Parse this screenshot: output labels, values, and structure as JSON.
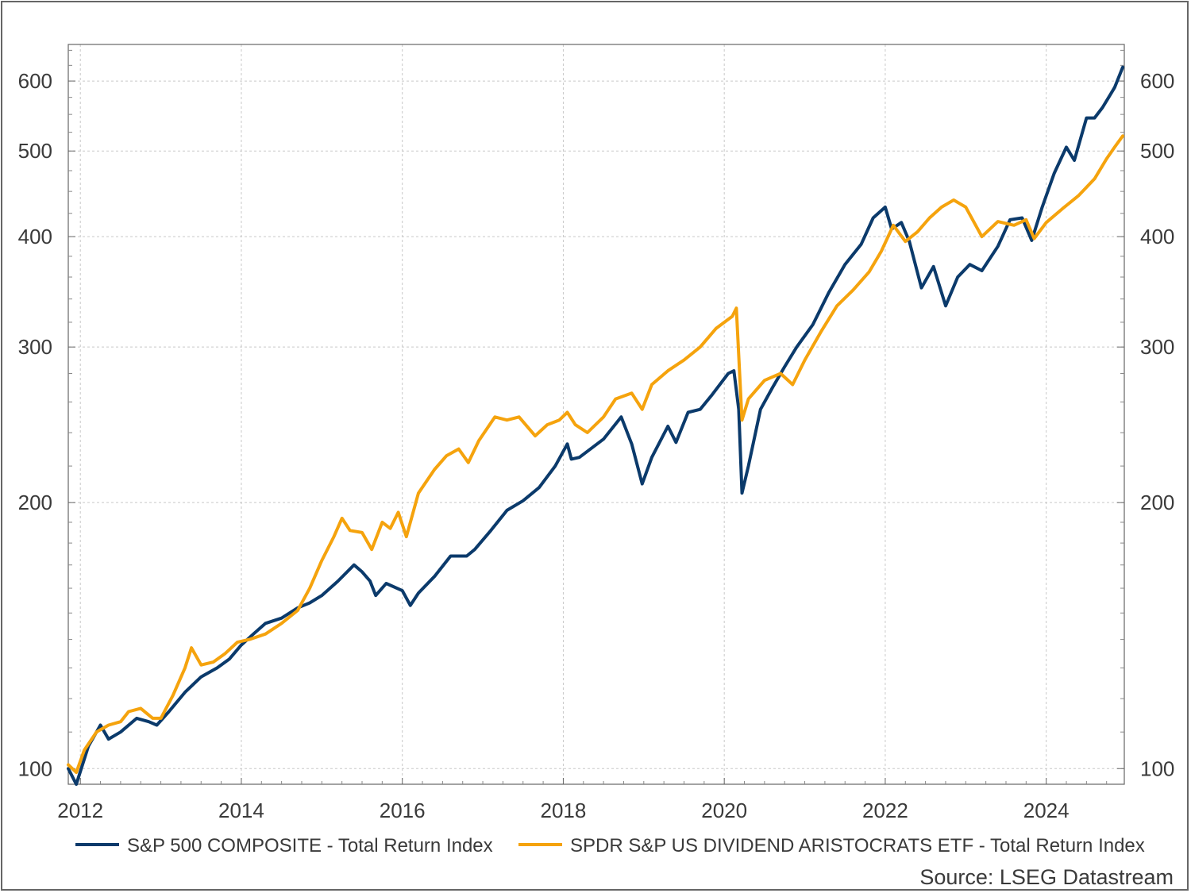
{
  "chart_data": {
    "type": "line",
    "title": "",
    "xlabel": "",
    "ylabel": "",
    "y_scale": "log",
    "ylim": [
      96,
      660
    ],
    "xlim": [
      2011.85,
      2024.97
    ],
    "x_ticks": [
      2012,
      2014,
      2016,
      2018,
      2020,
      2022,
      2024
    ],
    "x_tick_labels": [
      "2012",
      "2014",
      "2016",
      "2018",
      "2020",
      "2022",
      "2024"
    ],
    "y_ticks": [
      100,
      200,
      300,
      400,
      500,
      600
    ],
    "y_tick_labels": [
      "100",
      "200",
      "300",
      "400",
      "500",
      "600"
    ],
    "y_axis_both_sides": true,
    "grid": true,
    "legend_position": "bottom",
    "series": [
      {
        "name": "S&P 500 COMPOSITE - Total Return Index",
        "color": "#0b3a6b",
        "points": [
          [
            2011.85,
            100
          ],
          [
            2011.95,
            96
          ],
          [
            2012.1,
            106
          ],
          [
            2012.25,
            112
          ],
          [
            2012.35,
            108
          ],
          [
            2012.5,
            110
          ],
          [
            2012.7,
            114
          ],
          [
            2012.85,
            113
          ],
          [
            2012.95,
            112
          ],
          [
            2013.1,
            116
          ],
          [
            2013.3,
            122
          ],
          [
            2013.5,
            127
          ],
          [
            2013.7,
            130
          ],
          [
            2013.85,
            133
          ],
          [
            2014.0,
            138
          ],
          [
            2014.15,
            142
          ],
          [
            2014.3,
            146
          ],
          [
            2014.5,
            148
          ],
          [
            2014.7,
            152
          ],
          [
            2014.85,
            154
          ],
          [
            2015.0,
            157
          ],
          [
            2015.2,
            163
          ],
          [
            2015.4,
            170
          ],
          [
            2015.5,
            167
          ],
          [
            2015.6,
            163
          ],
          [
            2015.67,
            157
          ],
          [
            2015.8,
            162
          ],
          [
            2016.0,
            159
          ],
          [
            2016.1,
            153
          ],
          [
            2016.2,
            158
          ],
          [
            2016.4,
            165
          ],
          [
            2016.6,
            174
          ],
          [
            2016.8,
            174
          ],
          [
            2016.9,
            177
          ],
          [
            2017.1,
            186
          ],
          [
            2017.3,
            196
          ],
          [
            2017.5,
            201
          ],
          [
            2017.7,
            208
          ],
          [
            2017.9,
            220
          ],
          [
            2018.05,
            233
          ],
          [
            2018.1,
            224
          ],
          [
            2018.2,
            225
          ],
          [
            2018.5,
            236
          ],
          [
            2018.72,
            250
          ],
          [
            2018.85,
            233
          ],
          [
            2018.98,
            210
          ],
          [
            2019.1,
            225
          ],
          [
            2019.3,
            244
          ],
          [
            2019.4,
            234
          ],
          [
            2019.55,
            253
          ],
          [
            2019.7,
            255
          ],
          [
            2019.85,
            265
          ],
          [
            2020.05,
            280
          ],
          [
            2020.12,
            282
          ],
          [
            2020.18,
            255
          ],
          [
            2020.22,
            205
          ],
          [
            2020.3,
            220
          ],
          [
            2020.45,
            255
          ],
          [
            2020.6,
            270
          ],
          [
            2020.75,
            285
          ],
          [
            2020.9,
            300
          ],
          [
            2021.1,
            318
          ],
          [
            2021.3,
            346
          ],
          [
            2021.5,
            372
          ],
          [
            2021.7,
            392
          ],
          [
            2021.85,
            420
          ],
          [
            2022.0,
            432
          ],
          [
            2022.08,
            408
          ],
          [
            2022.2,
            415
          ],
          [
            2022.3,
            395
          ],
          [
            2022.45,
            350
          ],
          [
            2022.6,
            370
          ],
          [
            2022.75,
            334
          ],
          [
            2022.9,
            360
          ],
          [
            2023.05,
            372
          ],
          [
            2023.2,
            366
          ],
          [
            2023.4,
            390
          ],
          [
            2023.55,
            418
          ],
          [
            2023.7,
            420
          ],
          [
            2023.82,
            396
          ],
          [
            2023.95,
            432
          ],
          [
            2024.1,
            472
          ],
          [
            2024.25,
            505
          ],
          [
            2024.35,
            488
          ],
          [
            2024.5,
            545
          ],
          [
            2024.6,
            545
          ],
          [
            2024.7,
            560
          ],
          [
            2024.85,
            590
          ],
          [
            2024.95,
            622
          ]
        ]
      },
      {
        "name": "SPDR S&P US DIVIDEND ARISTOCRATS ETF - Total Return Index",
        "color": "#f5a30d",
        "points": [
          [
            2011.85,
            101
          ],
          [
            2011.95,
            99
          ],
          [
            2012.05,
            105
          ],
          [
            2012.2,
            110
          ],
          [
            2012.35,
            112
          ],
          [
            2012.5,
            113
          ],
          [
            2012.6,
            116
          ],
          [
            2012.75,
            117
          ],
          [
            2012.9,
            114
          ],
          [
            2013.0,
            114
          ],
          [
            2013.15,
            121
          ],
          [
            2013.3,
            130
          ],
          [
            2013.38,
            137
          ],
          [
            2013.5,
            131
          ],
          [
            2013.65,
            132
          ],
          [
            2013.8,
            135
          ],
          [
            2013.95,
            139
          ],
          [
            2014.1,
            140
          ],
          [
            2014.3,
            142
          ],
          [
            2014.5,
            146
          ],
          [
            2014.7,
            151
          ],
          [
            2014.85,
            160
          ],
          [
            2015.0,
            172
          ],
          [
            2015.15,
            183
          ],
          [
            2015.25,
            192
          ],
          [
            2015.35,
            186
          ],
          [
            2015.5,
            185
          ],
          [
            2015.62,
            177
          ],
          [
            2015.75,
            190
          ],
          [
            2015.85,
            187
          ],
          [
            2015.95,
            195
          ],
          [
            2016.05,
            183
          ],
          [
            2016.2,
            205
          ],
          [
            2016.4,
            218
          ],
          [
            2016.55,
            226
          ],
          [
            2016.7,
            230
          ],
          [
            2016.82,
            222
          ],
          [
            2016.95,
            235
          ],
          [
            2017.15,
            250
          ],
          [
            2017.3,
            248
          ],
          [
            2017.45,
            250
          ],
          [
            2017.65,
            238
          ],
          [
            2017.8,
            245
          ],
          [
            2017.95,
            248
          ],
          [
            2018.05,
            253
          ],
          [
            2018.15,
            245
          ],
          [
            2018.3,
            240
          ],
          [
            2018.5,
            250
          ],
          [
            2018.65,
            262
          ],
          [
            2018.85,
            266
          ],
          [
            2018.98,
            255
          ],
          [
            2019.1,
            272
          ],
          [
            2019.3,
            282
          ],
          [
            2019.5,
            290
          ],
          [
            2019.7,
            300
          ],
          [
            2019.9,
            315
          ],
          [
            2020.1,
            325
          ],
          [
            2020.15,
            332
          ],
          [
            2020.22,
            248
          ],
          [
            2020.3,
            262
          ],
          [
            2020.5,
            275
          ],
          [
            2020.7,
            280
          ],
          [
            2020.85,
            272
          ],
          [
            2021.0,
            290
          ],
          [
            2021.2,
            312
          ],
          [
            2021.4,
            334
          ],
          [
            2021.6,
            348
          ],
          [
            2021.8,
            365
          ],
          [
            2021.95,
            385
          ],
          [
            2022.1,
            412
          ],
          [
            2022.25,
            395
          ],
          [
            2022.4,
            405
          ],
          [
            2022.55,
            420
          ],
          [
            2022.7,
            432
          ],
          [
            2022.85,
            440
          ],
          [
            2023.0,
            432
          ],
          [
            2023.2,
            400
          ],
          [
            2023.4,
            416
          ],
          [
            2023.6,
            412
          ],
          [
            2023.75,
            418
          ],
          [
            2023.85,
            398
          ],
          [
            2024.0,
            415
          ],
          [
            2024.2,
            430
          ],
          [
            2024.4,
            445
          ],
          [
            2024.6,
            465
          ],
          [
            2024.75,
            490
          ],
          [
            2024.85,
            505
          ],
          [
            2024.95,
            520
          ]
        ]
      }
    ],
    "source": "Source: LSEG Datastream"
  }
}
